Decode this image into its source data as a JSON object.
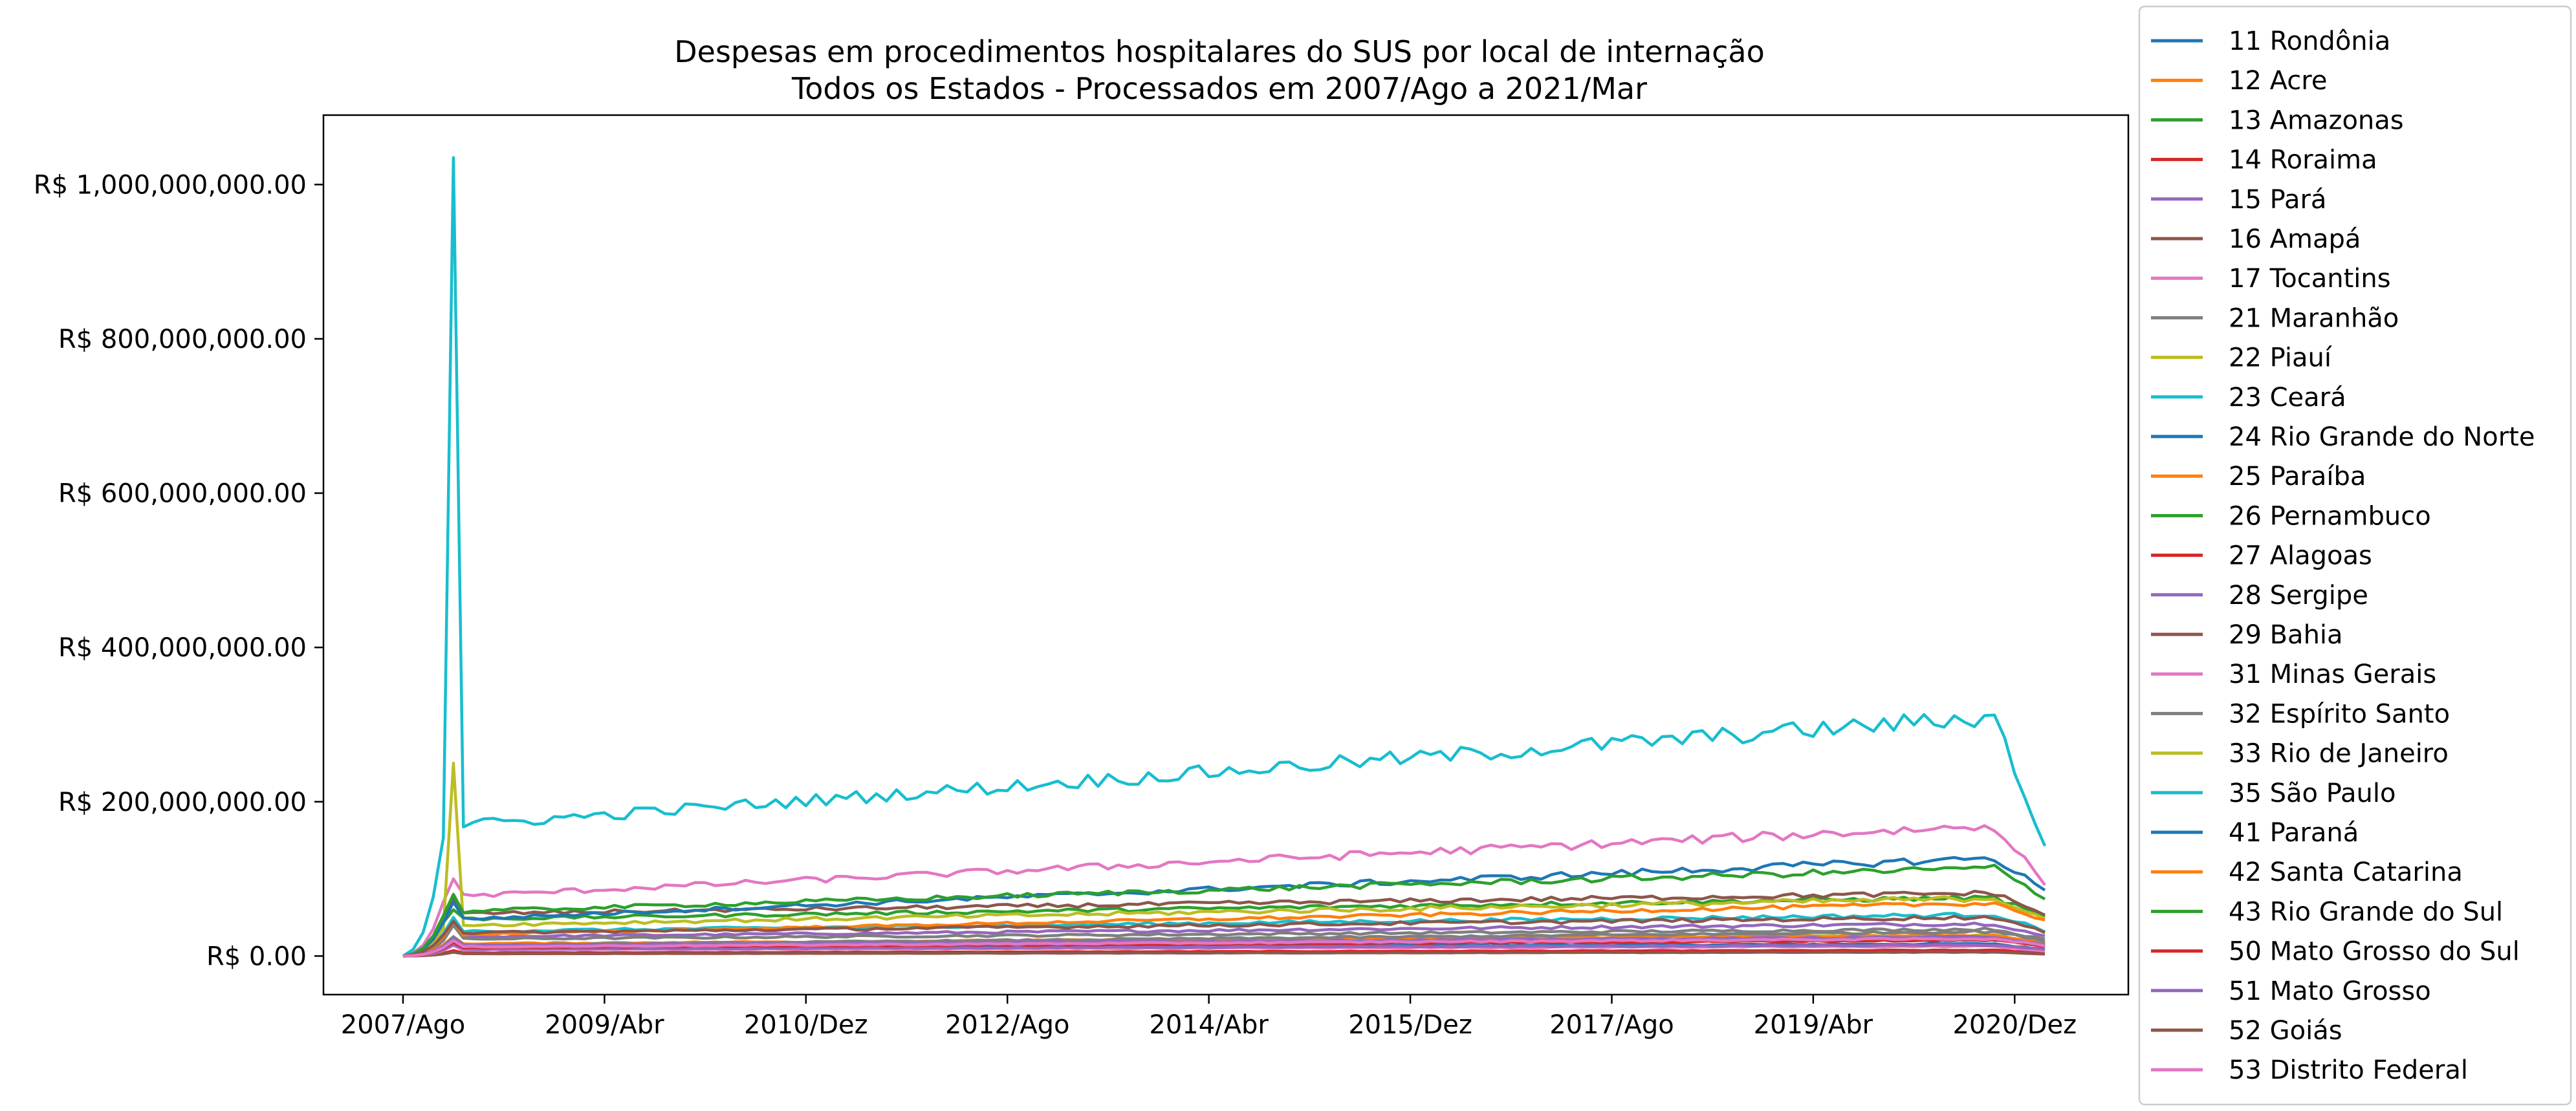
{
  "chart_data": {
    "type": "line",
    "title": "Despesas em procedimentos hospitalares do SUS por local de internação",
    "subtitle": "Todos os Estados - Processados em 2007/Ago a 2021/Mar",
    "xlabel": "",
    "ylabel": "",
    "x_start": "2007/Ago",
    "x_end": "2021/Mar",
    "xtick_labels": [
      "2007/Ago",
      "2009/Abr",
      "2010/Dez",
      "2012/Ago",
      "2014/Abr",
      "2015/Dez",
      "2017/Ago",
      "2019/Abr",
      "2020/Dez"
    ],
    "ylim": [
      -50000000,
      1090000000
    ],
    "yticks": [
      0,
      200000000,
      400000000,
      600000000,
      800000000,
      1000000000
    ],
    "ytick_labels": [
      "R$ 0.00",
      "R$ 200,000,000.00",
      "R$ 400,000,000.00",
      "R$ 600,000,000.00",
      "R$ 800,000,000.00",
      "R$ 1,000,000,000.00"
    ],
    "grid": false,
    "legend_position": "outside-right",
    "series": [
      {
        "name": "11 Rondônia",
        "color": "#1f77b4",
        "base": 10000000,
        "spike": 18000000,
        "growth": 0.6,
        "noise": 0.06,
        "drop": 0.5
      },
      {
        "name": "12 Acre",
        "color": "#ff7f0e",
        "base": 3000000,
        "spike": 5000000,
        "growth": 0.8,
        "noise": 0.06,
        "drop": 0.5
      },
      {
        "name": "13 Amazonas",
        "color": "#2ca02c",
        "base": 13000000,
        "spike": 22000000,
        "growth": 0.9,
        "noise": 0.06,
        "drop": 0.5
      },
      {
        "name": "14 Roraima",
        "color": "#d62728",
        "base": 4000000,
        "spike": 7000000,
        "growth": 0.9,
        "noise": 0.06,
        "drop": 0.5
      },
      {
        "name": "15 Pará",
        "color": "#9467bd",
        "base": 25000000,
        "spike": 45000000,
        "growth": 0.7,
        "noise": 0.05,
        "drop": 0.4
      },
      {
        "name": "16 Amapá",
        "color": "#8c564b",
        "base": 3000000,
        "spike": 5000000,
        "growth": 0.7,
        "noise": 0.06,
        "drop": 0.5
      },
      {
        "name": "17 Tocantins",
        "color": "#e377c2",
        "base": 8000000,
        "spike": 14000000,
        "growth": 0.6,
        "noise": 0.06,
        "drop": 0.5
      },
      {
        "name": "21 Maranhão",
        "color": "#7f7f7f",
        "base": 22000000,
        "spike": 40000000,
        "growth": 0.6,
        "noise": 0.05,
        "drop": 0.4
      },
      {
        "name": "22 Piauí",
        "color": "#bcbd22",
        "base": 15000000,
        "spike": 25000000,
        "growth": 0.8,
        "noise": 0.06,
        "drop": 0.4
      },
      {
        "name": "23 Ceará",
        "color": "#17becf",
        "base": 32000000,
        "spike": 50000000,
        "growth": 0.7,
        "noise": 0.05,
        "drop": 0.4
      },
      {
        "name": "24 Rio Grande do Norte",
        "color": "#1f77b4",
        "base": 13000000,
        "spike": 22000000,
        "growth": 0.8,
        "noise": 0.05,
        "drop": 0.4
      },
      {
        "name": "25 Paraíba",
        "color": "#ff7f0e",
        "base": 16000000,
        "spike": 25000000,
        "growth": 0.7,
        "noise": 0.05,
        "drop": 0.4
      },
      {
        "name": "26 Pernambuco",
        "color": "#2ca02c",
        "base": 48000000,
        "spike": 60000000,
        "growth": 0.6,
        "noise": 0.04,
        "drop": 0.35
      },
      {
        "name": "27 Alagoas",
        "color": "#d62728",
        "base": 12000000,
        "spike": 20000000,
        "growth": 0.8,
        "noise": 0.05,
        "drop": 0.4
      },
      {
        "name": "28 Sergipe",
        "color": "#9467bd",
        "base": 9000000,
        "spike": 15000000,
        "growth": 0.6,
        "noise": 0.05,
        "drop": 0.4
      },
      {
        "name": "29 Bahia",
        "color": "#8c564b",
        "base": 55000000,
        "spike": 75000000,
        "growth": 0.5,
        "noise": 0.04,
        "drop": 0.35
      },
      {
        "name": "31 Minas Gerais",
        "color": "#e377c2",
        "base": 78000000,
        "spike": 100000000,
        "growth": 1.2,
        "noise": 0.04,
        "drop": 0.45
      },
      {
        "name": "32 Espírito Santo",
        "color": "#7f7f7f",
        "base": 14000000,
        "spike": 25000000,
        "growth": 1.3,
        "noise": 0.05,
        "drop": 0.4
      },
      {
        "name": "33 Rio de Janeiro",
        "color": "#bcbd22",
        "base": 40000000,
        "spike": 250000000,
        "growth": 0.9,
        "noise": 0.05,
        "drop": 0.35
      },
      {
        "name": "35 São Paulo",
        "color": "#17becf",
        "base": 170000000,
        "spike": 1035000000,
        "growth": 0.85,
        "noise": 0.04,
        "drop": 0.55
      },
      {
        "name": "41 Paraná",
        "color": "#1f77b4",
        "base": 48000000,
        "spike": 70000000,
        "growth": 1.7,
        "noise": 0.04,
        "drop": 0.35
      },
      {
        "name": "42 Santa Catarina",
        "color": "#ff7f0e",
        "base": 28000000,
        "spike": 45000000,
        "growth": 1.5,
        "noise": 0.04,
        "drop": 0.35
      },
      {
        "name": "43 Rio Grande do Sul",
        "color": "#2ca02c",
        "base": 58000000,
        "spike": 80000000,
        "growth": 1.0,
        "noise": 0.04,
        "drop": 0.35
      },
      {
        "name": "50 Mato Grosso do Sul",
        "color": "#d62728",
        "base": 11000000,
        "spike": 18000000,
        "growth": 0.9,
        "noise": 0.05,
        "drop": 0.4
      },
      {
        "name": "51 Mato Grosso",
        "color": "#9467bd",
        "base": 14000000,
        "spike": 22000000,
        "growth": 0.8,
        "noise": 0.05,
        "drop": 0.4
      },
      {
        "name": "52 Goiás",
        "color": "#8c564b",
        "base": 30000000,
        "spike": 45000000,
        "growth": 0.7,
        "noise": 0.05,
        "drop": 0.4
      },
      {
        "name": "53 Distrito Federal",
        "color": "#e377c2",
        "base": 12000000,
        "spike": 20000000,
        "growth": 0.9,
        "noise": 0.05,
        "drop": 0.4
      }
    ]
  }
}
